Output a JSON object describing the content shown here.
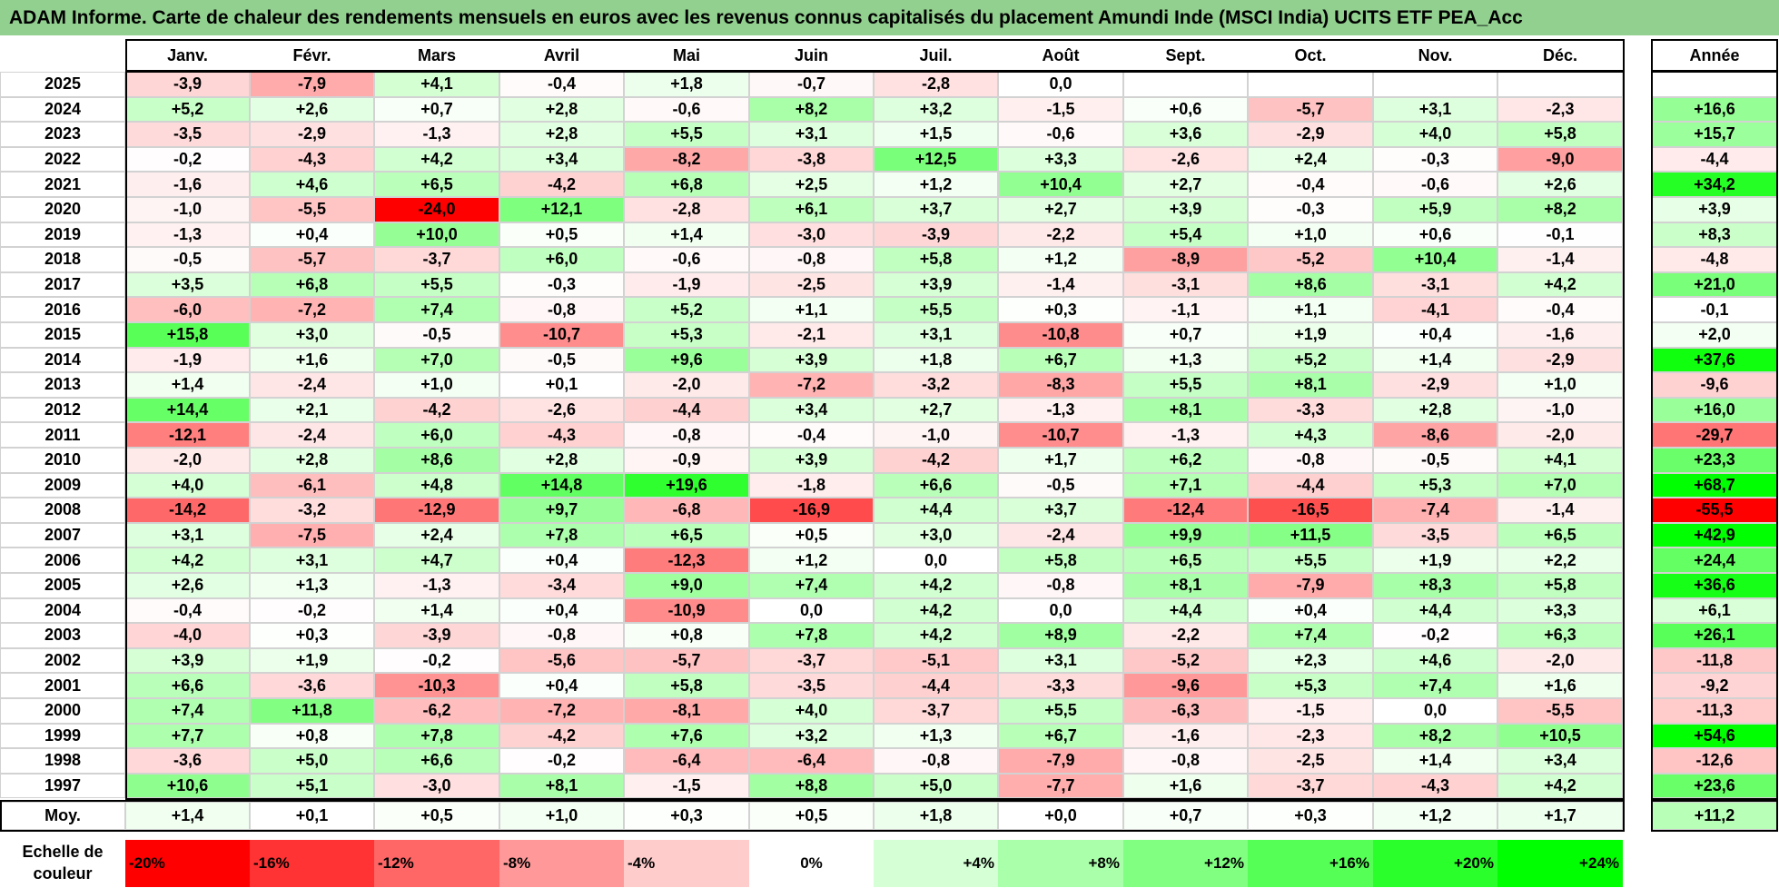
{
  "title": "ADAM Informe. Carte de chaleur des rendements mensuels en euros avec les revenus connus capitalisés du placement Amundi Inde (MSCI India) UCITS ETF PEA_Acc",
  "chart_data": {
    "type": "heatmap",
    "columns": [
      "Janv.",
      "Févr.",
      "Mars",
      "Avril",
      "Mai",
      "Juin",
      "Juil.",
      "Août",
      "Sept.",
      "Oct.",
      "Nov.",
      "Déc."
    ],
    "year_column": "Année",
    "rows": [
      {
        "year": "2025",
        "values": [
          "-3,9",
          "-7,9",
          "+4,1",
          "-0,4",
          "+1,8",
          "-0,7",
          "-2,8",
          "0,0",
          "",
          "",
          "",
          ""
        ],
        "annual": ""
      },
      {
        "year": "2024",
        "values": [
          "+5,2",
          "+2,6",
          "+0,7",
          "+2,8",
          "-0,6",
          "+8,2",
          "+3,2",
          "-1,5",
          "+0,6",
          "-5,7",
          "+3,1",
          "-2,3"
        ],
        "annual": "+16,6"
      },
      {
        "year": "2023",
        "values": [
          "-3,5",
          "-2,9",
          "-1,3",
          "+2,8",
          "+5,5",
          "+3,1",
          "+1,5",
          "-0,6",
          "+3,6",
          "-2,9",
          "+4,0",
          "+5,8"
        ],
        "annual": "+15,7"
      },
      {
        "year": "2022",
        "values": [
          "-0,2",
          "-4,3",
          "+4,2",
          "+3,4",
          "-8,2",
          "-3,8",
          "+12,5",
          "+3,3",
          "-2,6",
          "+2,4",
          "-0,3",
          "-9,0"
        ],
        "annual": "-4,4"
      },
      {
        "year": "2021",
        "values": [
          "-1,6",
          "+4,6",
          "+6,5",
          "-4,2",
          "+6,8",
          "+2,5",
          "+1,2",
          "+10,4",
          "+2,7",
          "-0,4",
          "-0,6",
          "+2,6"
        ],
        "annual": "+34,2"
      },
      {
        "year": "2020",
        "values": [
          "-1,0",
          "-5,5",
          "-24,0",
          "+12,1",
          "-2,8",
          "+6,1",
          "+3,7",
          "+2,7",
          "+3,9",
          "-0,3",
          "+5,9",
          "+8,2"
        ],
        "annual": "+3,9"
      },
      {
        "year": "2019",
        "values": [
          "-1,3",
          "+0,4",
          "+10,0",
          "+0,5",
          "+1,4",
          "-3,0",
          "-3,9",
          "-2,2",
          "+5,4",
          "+1,0",
          "+0,6",
          "-0,1"
        ],
        "annual": "+8,3"
      },
      {
        "year": "2018",
        "values": [
          "-0,5",
          "-5,7",
          "-3,7",
          "+6,0",
          "-0,6",
          "-0,8",
          "+5,8",
          "+1,2",
          "-8,9",
          "-5,2",
          "+10,4",
          "-1,4"
        ],
        "annual": "-4,8"
      },
      {
        "year": "2017",
        "values": [
          "+3,5",
          "+6,8",
          "+5,5",
          "-0,3",
          "-1,9",
          "-2,5",
          "+3,9",
          "-1,4",
          "-3,1",
          "+8,6",
          "-3,1",
          "+4,2"
        ],
        "annual": "+21,0"
      },
      {
        "year": "2016",
        "values": [
          "-6,0",
          "-7,2",
          "+7,4",
          "-0,8",
          "+5,2",
          "+1,1",
          "+5,5",
          "+0,3",
          "-1,1",
          "+1,1",
          "-4,1",
          "-0,4"
        ],
        "annual": "-0,1"
      },
      {
        "year": "2015",
        "values": [
          "+15,8",
          "+3,0",
          "-0,5",
          "-10,7",
          "+5,3",
          "-2,1",
          "+3,1",
          "-10,8",
          "+0,7",
          "+1,9",
          "+0,4",
          "-1,6"
        ],
        "annual": "+2,0"
      },
      {
        "year": "2014",
        "values": [
          "-1,9",
          "+1,6",
          "+7,0",
          "-0,5",
          "+9,6",
          "+3,9",
          "+1,8",
          "+6,7",
          "+1,3",
          "+5,2",
          "+1,4",
          "-2,9"
        ],
        "annual": "+37,6"
      },
      {
        "year": "2013",
        "values": [
          "+1,4",
          "-2,4",
          "+1,0",
          "+0,1",
          "-2,0",
          "-7,2",
          "-3,2",
          "-8,3",
          "+5,5",
          "+8,1",
          "-2,9",
          "+1,0"
        ],
        "annual": "-9,6"
      },
      {
        "year": "2012",
        "values": [
          "+14,4",
          "+2,1",
          "-4,2",
          "-2,6",
          "-4,4",
          "+3,4",
          "+2,7",
          "-1,3",
          "+8,1",
          "-3,3",
          "+2,8",
          "-1,0"
        ],
        "annual": "+16,0"
      },
      {
        "year": "2011",
        "values": [
          "-12,1",
          "-2,4",
          "+6,0",
          "-4,3",
          "-0,8",
          "-0,4",
          "-1,0",
          "-10,7",
          "-1,3",
          "+4,3",
          "-8,6",
          "-2,0"
        ],
        "annual": "-29,7"
      },
      {
        "year": "2010",
        "values": [
          "-2,0",
          "+2,8",
          "+8,6",
          "+2,8",
          "-0,9",
          "+3,9",
          "-4,2",
          "+1,7",
          "+6,2",
          "-0,8",
          "-0,5",
          "+4,1"
        ],
        "annual": "+23,3"
      },
      {
        "year": "2009",
        "values": [
          "+4,0",
          "-6,1",
          "+4,8",
          "+14,8",
          "+19,6",
          "-1,8",
          "+6,6",
          "-0,5",
          "+7,1",
          "-4,4",
          "+5,3",
          "+7,0"
        ],
        "annual": "+68,7"
      },
      {
        "year": "2008",
        "values": [
          "-14,2",
          "-3,2",
          "-12,9",
          "+9,7",
          "-6,8",
          "-16,9",
          "+4,4",
          "+3,7",
          "-12,4",
          "-16,5",
          "-7,4",
          "-1,4"
        ],
        "annual": "-55,5"
      },
      {
        "year": "2007",
        "values": [
          "+3,1",
          "-7,5",
          "+2,4",
          "+7,8",
          "+6,5",
          "+0,5",
          "+3,0",
          "-2,4",
          "+9,9",
          "+11,5",
          "-3,5",
          "+6,5"
        ],
        "annual": "+42,9"
      },
      {
        "year": "2006",
        "values": [
          "+4,2",
          "+3,1",
          "+4,7",
          "+0,4",
          "-12,3",
          "+1,2",
          "0,0",
          "+5,8",
          "+6,5",
          "+5,5",
          "+1,9",
          "+2,2"
        ],
        "annual": "+24,4"
      },
      {
        "year": "2005",
        "values": [
          "+2,6",
          "+1,3",
          "-1,3",
          "-3,4",
          "+9,0",
          "+7,4",
          "+4,2",
          "-0,8",
          "+8,1",
          "-7,9",
          "+8,3",
          "+5,8"
        ],
        "annual": "+36,6"
      },
      {
        "year": "2004",
        "values": [
          "-0,4",
          "-0,2",
          "+1,4",
          "+0,4",
          "-10,9",
          "0,0",
          "+4,2",
          "0,0",
          "+4,4",
          "+0,4",
          "+4,4",
          "+3,3"
        ],
        "annual": "+6,1"
      },
      {
        "year": "2003",
        "values": [
          "-4,0",
          "+0,3",
          "-3,9",
          "-0,8",
          "+0,8",
          "+7,8",
          "+4,2",
          "+8,9",
          "-2,2",
          "+7,4",
          "-0,2",
          "+6,3"
        ],
        "annual": "+26,1"
      },
      {
        "year": "2002",
        "values": [
          "+3,9",
          "+1,9",
          "-0,2",
          "-5,6",
          "-5,7",
          "-3,7",
          "-5,1",
          "+3,1",
          "-5,2",
          "+2,3",
          "+4,6",
          "-2,0"
        ],
        "annual": "-11,8"
      },
      {
        "year": "2001",
        "values": [
          "+6,6",
          "-3,6",
          "-10,3",
          "+0,4",
          "+5,8",
          "-3,5",
          "-4,4",
          "-3,3",
          "-9,6",
          "+5,3",
          "+7,4",
          "+1,6"
        ],
        "annual": "-9,2"
      },
      {
        "year": "2000",
        "values": [
          "+7,4",
          "+11,8",
          "-6,2",
          "-7,2",
          "-8,1",
          "+4,0",
          "-3,7",
          "+5,5",
          "-6,3",
          "-1,5",
          "0,0",
          "-5,5"
        ],
        "annual": "-11,3"
      },
      {
        "year": "1999",
        "values": [
          "+7,7",
          "+0,8",
          "+7,8",
          "-4,2",
          "+7,6",
          "+3,2",
          "+1,3",
          "+6,7",
          "-1,6",
          "-2,3",
          "+8,2",
          "+10,5"
        ],
        "annual": "+54,6"
      },
      {
        "year": "1998",
        "values": [
          "-3,6",
          "+5,0",
          "+6,6",
          "-0,2",
          "-6,4",
          "-6,4",
          "-0,8",
          "-7,9",
          "-0,8",
          "-2,5",
          "+1,4",
          "+3,4"
        ],
        "annual": "-12,6"
      },
      {
        "year": "1997",
        "values": [
          "+10,6",
          "+5,1",
          "-3,0",
          "+8,1",
          "-1,5",
          "+8,8",
          "+5,0",
          "-7,7",
          "+1,6",
          "-3,7",
          "-4,3",
          "+4,2"
        ],
        "annual": "+23,6"
      }
    ],
    "average": {
      "label": "Moy.",
      "values": [
        "+1,4",
        "+0,1",
        "+0,5",
        "+1,0",
        "+0,3",
        "+0,5",
        "+1,8",
        "+0,0",
        "+0,7",
        "+0,3",
        "+1,2",
        "+1,7"
      ],
      "annual": "+11,2"
    },
    "scale": {
      "label": "Echelle de couleur",
      "steps": [
        "-20%",
        "-16%",
        "-12%",
        "-8%",
        "-4%",
        "0%",
        "+4%",
        "+8%",
        "+12%",
        "+16%",
        "+20%",
        "+24%"
      ]
    },
    "colors": {
      "negative_max": "#ff0000",
      "neutral": "#ffffff",
      "positive_max": "#00ff00",
      "title_bg": "#92d08f"
    }
  }
}
